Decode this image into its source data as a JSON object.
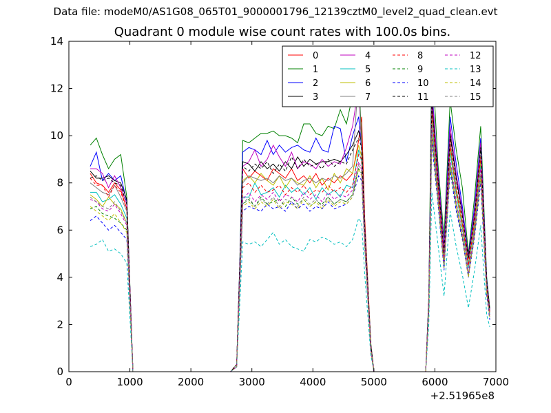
{
  "suptitle": "Data file: modeM0/AS1G08_065T01_9000001796_12139cztM0_level2_quad_clean.evt",
  "chart_data": {
    "type": "line",
    "title": "Quadrant 0 module wise count rates with 100.0s bins.",
    "xlabel": "",
    "ylabel": "",
    "x_offset_label": "+2.51965e8",
    "xlim": [
      0,
      7000
    ],
    "ylim": [
      0,
      14
    ],
    "xticks": [
      "0",
      "1000",
      "2000",
      "3000",
      "4000",
      "5000",
      "6000",
      "7000"
    ],
    "yticks": [
      "0",
      "2",
      "4",
      "6",
      "8",
      "10",
      "12",
      "14"
    ],
    "grid": false,
    "legend_position": "top-right",
    "legend_columns": 4,
    "x": [
      350,
      450,
      550,
      650,
      750,
      850,
      950,
      1000,
      1050,
      1100,
      1300,
      1600,
      1900,
      2200,
      2500,
      2650,
      2750,
      2800,
      2850,
      2950,
      3050,
      3150,
      3250,
      3350,
      3450,
      3550,
      3650,
      3750,
      3850,
      3950,
      4050,
      4150,
      4250,
      4350,
      4450,
      4550,
      4650,
      4750,
      4800,
      4850,
      4950,
      5000,
      5050,
      5300,
      5600,
      5850,
      5900,
      5950,
      6050,
      6150,
      6250,
      6350,
      6450,
      6550,
      6650,
      6750,
      6850,
      6900
    ],
    "series": [
      {
        "name": "0",
        "color": "#ff0000",
        "dash": "solid",
        "values": [
          8.4,
          8.0,
          7.9,
          7.6,
          8.0,
          7.7,
          6.9,
          3.5,
          0,
          0,
          0,
          0,
          0,
          0,
          0,
          0,
          0.3,
          4.2,
          8.6,
          8.2,
          8.5,
          8.3,
          8.1,
          8.6,
          8.4,
          8.2,
          8.6,
          8.1,
          8.3,
          8.0,
          8.4,
          7.9,
          8.2,
          8.0,
          8.3,
          8.1,
          8.4,
          9.8,
          10.8,
          6.5,
          1.2,
          0,
          0,
          0,
          0,
          0,
          3.0,
          11.3,
          8.2,
          5.0,
          9.8,
          7.5,
          6.2,
          4.8,
          6.0,
          9.0,
          3.8,
          2.6
        ]
      },
      {
        "name": "1",
        "color": "#008000",
        "dash": "solid",
        "values": [
          9.6,
          9.9,
          9.2,
          8.6,
          9.0,
          9.2,
          7.4,
          3.7,
          0,
          0,
          0,
          0,
          0,
          0,
          0,
          0,
          0.3,
          4.5,
          9.8,
          9.7,
          9.9,
          10.1,
          10.1,
          10.2,
          10.0,
          10.0,
          9.9,
          9.7,
          10.5,
          10.5,
          10.1,
          10.0,
          10.4,
          10.3,
          11.1,
          10.5,
          11.7,
          12.5,
          9.9,
          6.2,
          1.2,
          0,
          0,
          0,
          0,
          0,
          3.2,
          13.6,
          8.8,
          5.7,
          11.5,
          9.4,
          7.8,
          5.0,
          7.4,
          10.4,
          4.0,
          2.7
        ]
      },
      {
        "name": "2",
        "color": "#0000ff",
        "dash": "solid",
        "values": [
          8.7,
          9.3,
          8.1,
          8.4,
          8.1,
          8.3,
          7.2,
          3.6,
          0,
          0,
          0,
          0,
          0,
          0,
          0,
          0,
          0.3,
          4.4,
          9.3,
          9.5,
          9.4,
          9.2,
          9.8,
          9.2,
          9.6,
          9.3,
          9.5,
          9.6,
          9.4,
          9.3,
          9.9,
          9.4,
          9.3,
          10.4,
          10.3,
          8.9,
          10.0,
          10.8,
          9.4,
          6.0,
          1.1,
          0,
          0,
          0,
          0,
          0,
          3.1,
          12.0,
          8.5,
          5.3,
          10.8,
          8.8,
          7.0,
          4.9,
          7.0,
          9.9,
          3.9,
          2.6
        ]
      },
      {
        "name": "3",
        "color": "#000000",
        "dash": "solid",
        "values": [
          8.5,
          8.2,
          8.2,
          8.3,
          8.1,
          8.0,
          7.3,
          3.6,
          0,
          0,
          0,
          0,
          0,
          0,
          0,
          0,
          0.3,
          4.3,
          8.9,
          8.8,
          8.5,
          8.9,
          8.6,
          8.8,
          8.5,
          8.9,
          8.6,
          9.1,
          8.7,
          9.0,
          8.8,
          8.9,
          8.9,
          9.0,
          8.9,
          9.2,
          9.6,
          10.2,
          9.7,
          6.0,
          1.1,
          0,
          0,
          0,
          0,
          0,
          3.0,
          11.5,
          8.3,
          5.1,
          10.1,
          8.2,
          6.7,
          4.9,
          6.6,
          9.6,
          3.8,
          2.6
        ]
      },
      {
        "name": "4",
        "color": "#bf00bf",
        "dash": "solid",
        "values": [
          8.6,
          8.6,
          8.4,
          7.8,
          8.3,
          7.8,
          7.1,
          3.6,
          0,
          0,
          0,
          0,
          0,
          0,
          0,
          0,
          0.3,
          4.3,
          8.7,
          8.9,
          9.4,
          8.7,
          9.0,
          9.6,
          9.1,
          8.7,
          9.3,
          8.6,
          8.9,
          8.8,
          8.6,
          9.0,
          8.7,
          8.9,
          8.8,
          9.5,
          10.4,
          12.1,
          9.5,
          6.1,
          1.1,
          0,
          0,
          0,
          0,
          0,
          3.0,
          11.8,
          8.4,
          5.2,
          10.4,
          8.4,
          6.8,
          4.8,
          6.8,
          9.7,
          3.8,
          2.6
        ]
      },
      {
        "name": "5",
        "color": "#00bfbf",
        "dash": "solid",
        "values": [
          7.6,
          7.6,
          7.2,
          7.3,
          7.5,
          7.1,
          6.5,
          3.3,
          0,
          0,
          0,
          0,
          0,
          0,
          0,
          0,
          0.3,
          3.9,
          7.4,
          7.4,
          8.0,
          7.5,
          7.6,
          7.8,
          7.4,
          7.9,
          7.6,
          7.8,
          7.5,
          7.8,
          7.3,
          7.8,
          7.5,
          7.7,
          7.4,
          7.9,
          7.8,
          9.4,
          8.9,
          5.7,
          1.0,
          0,
          0,
          0,
          0,
          0,
          2.8,
          10.7,
          7.7,
          4.7,
          9.3,
          7.5,
          6.1,
          4.4,
          6.2,
          8.8,
          3.5,
          2.4
        ]
      },
      {
        "name": "6",
        "color": "#bfbf00",
        "dash": "solid",
        "values": [
          7.5,
          7.3,
          7.0,
          7.4,
          7.1,
          6.9,
          6.3,
          3.2,
          0,
          0,
          0,
          0,
          0,
          0,
          0,
          0,
          0.3,
          3.9,
          8.1,
          8.3,
          8.0,
          8.4,
          8.1,
          7.9,
          8.3,
          7.8,
          8.2,
          8.0,
          7.9,
          8.3,
          7.8,
          8.2,
          7.7,
          8.4,
          8.0,
          8.6,
          8.4,
          9.6,
          9.1,
          5.8,
          1.0,
          0,
          0,
          0,
          0,
          0,
          2.8,
          10.9,
          7.8,
          4.8,
          9.5,
          7.6,
          6.2,
          4.5,
          6.3,
          9.0,
          3.6,
          2.5
        ]
      },
      {
        "name": "7",
        "color": "#808080",
        "dash": "solid",
        "values": [
          8.0,
          7.8,
          7.6,
          7.5,
          7.9,
          7.4,
          6.8,
          3.4,
          0,
          0,
          0,
          0,
          0,
          0,
          0,
          0,
          0.3,
          4.1,
          8.0,
          8.3,
          8.2,
          8.1,
          8.2,
          8.0,
          8.3,
          8.1,
          8.2,
          7.9,
          8.1,
          8.2,
          8.0,
          8.2,
          8.1,
          8.3,
          8.2,
          8.4,
          8.7,
          12.6,
          9.3,
          5.9,
          1.0,
          0,
          0,
          0,
          0,
          0,
          2.9,
          11.1,
          7.9,
          4.9,
          9.7,
          7.8,
          6.4,
          4.6,
          6.5,
          9.2,
          3.6,
          2.5
        ]
      },
      {
        "name": "8",
        "color": "#ff0000",
        "dash": "dashed",
        "values": [
          8.2,
          7.9,
          7.9,
          7.4,
          7.9,
          7.6,
          6.9,
          3.5,
          0,
          0,
          0,
          0,
          0,
          0,
          0,
          0,
          0.3,
          4.2,
          7.8,
          8.0,
          7.6,
          7.9,
          7.6,
          7.7,
          7.9,
          7.5,
          7.8,
          7.6,
          7.9,
          7.5,
          7.7,
          7.6,
          7.9,
          7.6,
          7.8,
          7.6,
          7.9,
          9.2,
          9.0,
          5.8,
          1.0,
          0,
          0,
          0,
          0,
          0,
          2.9,
          11.0,
          7.9,
          4.8,
          9.6,
          7.7,
          6.3,
          4.5,
          6.4,
          9.1,
          3.6,
          2.5
        ]
      },
      {
        "name": "9",
        "color": "#008000",
        "dash": "dashed",
        "values": [
          6.9,
          7.0,
          6.7,
          6.6,
          6.5,
          6.3,
          6.0,
          3.0,
          0,
          0,
          0,
          0,
          0,
          0,
          0,
          0,
          0.2,
          3.6,
          7.1,
          7.3,
          7.0,
          7.4,
          7.1,
          7.2,
          7.3,
          7.0,
          7.4,
          7.1,
          7.3,
          7.0,
          7.2,
          7.1,
          7.4,
          7.1,
          7.3,
          7.2,
          7.5,
          8.6,
          8.4,
          5.4,
          0.9,
          0,
          0,
          0,
          0,
          0,
          2.7,
          10.0,
          7.3,
          4.4,
          8.7,
          7.0,
          5.7,
          4.1,
          5.8,
          8.3,
          3.3,
          2.3
        ]
      },
      {
        "name": "10",
        "color": "#0000ff",
        "dash": "dashed",
        "values": [
          6.4,
          6.6,
          6.3,
          6.0,
          6.2,
          5.9,
          5.6,
          2.8,
          0,
          0,
          0,
          0,
          0,
          0,
          0,
          0,
          0.2,
          3.4,
          6.8,
          7.0,
          6.9,
          6.8,
          7.1,
          6.9,
          7.0,
          6.8,
          7.2,
          6.9,
          7.1,
          6.8,
          7.0,
          6.9,
          7.2,
          6.9,
          7.0,
          7.1,
          7.4,
          8.3,
          8.1,
          5.2,
          0.9,
          0,
          0,
          0,
          0,
          0,
          2.6,
          9.7,
          7.1,
          4.3,
          8.5,
          6.8,
          5.6,
          4.0,
          5.7,
          8.0,
          3.2,
          2.2
        ]
      },
      {
        "name": "11",
        "color": "#000000",
        "dash": "dashed",
        "values": [
          8.2,
          8.3,
          8.1,
          8.2,
          8.0,
          7.9,
          7.1,
          3.5,
          0,
          0,
          0,
          0,
          0,
          0,
          0,
          0,
          0.3,
          4.3,
          8.7,
          8.5,
          8.8,
          8.6,
          8.9,
          8.4,
          8.8,
          8.5,
          9.1,
          8.6,
          9.0,
          8.7,
          8.8,
          8.6,
          9.0,
          8.7,
          8.9,
          8.8,
          9.4,
          9.9,
          9.5,
          6.0,
          1.1,
          0,
          0,
          0,
          0,
          0,
          3.0,
          11.4,
          8.2,
          5.0,
          10.0,
          8.1,
          6.6,
          4.8,
          6.6,
          9.5,
          3.8,
          2.6
        ]
      },
      {
        "name": "12",
        "color": "#bf00bf",
        "dash": "dashed",
        "values": [
          7.3,
          7.2,
          6.9,
          6.8,
          7.1,
          6.7,
          6.2,
          3.1,
          0,
          0,
          0,
          0,
          0,
          0,
          0,
          0,
          0.2,
          3.8,
          7.3,
          7.6,
          7.2,
          7.5,
          7.3,
          7.6,
          7.2,
          7.5,
          7.4,
          7.2,
          7.6,
          7.3,
          7.5,
          7.2,
          7.6,
          7.3,
          7.5,
          7.4,
          7.7,
          8.9,
          8.6,
          5.5,
          0.9,
          0,
          0,
          0,
          0,
          0,
          2.7,
          10.4,
          7.5,
          4.6,
          9.0,
          7.2,
          5.9,
          4.2,
          6.0,
          8.6,
          3.4,
          2.4
        ]
      },
      {
        "name": "13",
        "color": "#00bfbf",
        "dash": "dashed",
        "values": [
          5.3,
          5.4,
          5.6,
          5.1,
          5.2,
          5.0,
          4.6,
          2.3,
          0,
          0,
          0,
          0,
          0,
          0,
          0,
          0,
          0.2,
          2.8,
          5.5,
          5.4,
          5.5,
          5.3,
          5.6,
          5.9,
          5.4,
          5.6,
          5.3,
          5.2,
          5.1,
          5.6,
          5.5,
          5.7,
          5.6,
          5.4,
          5.5,
          5.3,
          5.6,
          6.5,
          6.3,
          4.1,
          0.7,
          0,
          0,
          0,
          0,
          0,
          2.0,
          7.6,
          5.4,
          3.2,
          6.8,
          5.3,
          4.1,
          2.7,
          4.3,
          6.2,
          2.4,
          1.9
        ]
      },
      {
        "name": "14",
        "color": "#bfbf00",
        "dash": "dashed",
        "values": [
          7.0,
          6.8,
          6.6,
          6.4,
          6.7,
          6.3,
          5.9,
          2.9,
          0,
          0,
          0,
          0,
          0,
          0,
          0,
          0,
          0.2,
          3.6,
          7.0,
          7.2,
          6.9,
          7.2,
          7.0,
          7.3,
          6.9,
          7.2,
          7.1,
          6.9,
          7.3,
          7.0,
          7.2,
          6.9,
          7.3,
          7.0,
          7.2,
          7.1,
          7.4,
          8.6,
          8.3,
          5.3,
          0.9,
          0,
          0,
          0,
          0,
          0,
          2.6,
          10.0,
          7.2,
          4.4,
          8.7,
          7.0,
          5.7,
          4.0,
          5.8,
          8.2,
          3.3,
          2.3
        ]
      },
      {
        "name": "15",
        "color": "#808080",
        "dash": "dashed",
        "values": [
          7.4,
          7.2,
          7.0,
          6.9,
          7.2,
          6.8,
          6.3,
          3.1,
          0,
          0,
          0,
          0,
          0,
          0,
          0,
          0,
          0.2,
          3.8,
          7.1,
          7.4,
          7.0,
          7.3,
          7.1,
          7.4,
          7.0,
          7.3,
          7.2,
          7.0,
          7.4,
          7.1,
          7.3,
          7.0,
          7.4,
          7.1,
          7.3,
          7.2,
          7.5,
          8.8,
          8.5,
          5.4,
          0.9,
          0,
          0,
          0,
          0,
          0,
          2.7,
          10.3,
          7.4,
          4.5,
          8.9,
          7.1,
          5.8,
          4.1,
          5.9,
          8.4,
          3.4,
          2.3
        ]
      }
    ]
  }
}
